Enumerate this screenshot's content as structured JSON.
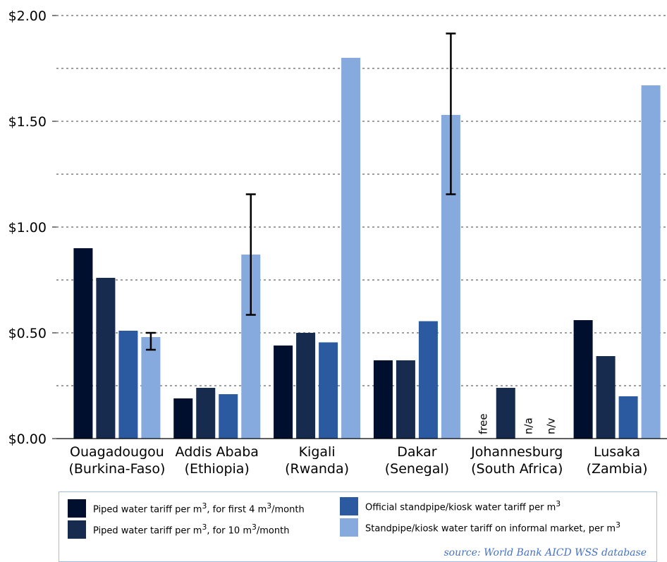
{
  "chart_data": {
    "type": "bar",
    "title": "",
    "xlabel": "",
    "ylabel": "",
    "ylim": [
      0,
      2.0
    ],
    "yticks": [
      0.0,
      0.5,
      1.0,
      1.5,
      2.0
    ],
    "ytick_labels": [
      "$0.00",
      "$0.50",
      "$1.00",
      "$1.50",
      "$2.00"
    ],
    "minor_gridlines": [
      0.25,
      0.75,
      1.25,
      1.75
    ],
    "grid": "horizontal dotted",
    "categories": [
      {
        "line1": "Ouagadougou",
        "line2": "(Burkina-Faso)"
      },
      {
        "line1": "Addis Ababa",
        "line2": "(Ethiopia)"
      },
      {
        "line1": "Kigali",
        "line2": "(Rwanda)"
      },
      {
        "line1": "Dakar",
        "line2": "(Senegal)"
      },
      {
        "line1": "Johannesburg",
        "line2": "(South Africa)"
      },
      {
        "line1": "Lusaka",
        "line2": "(Zambia)"
      }
    ],
    "series": [
      {
        "name": "Piped water tariff per m3, for first 4 m3/month",
        "color": "#000f2d",
        "values": [
          0.9,
          0.19,
          0.44,
          0.37,
          null,
          0.56
        ]
      },
      {
        "name": "Piped water tariff per m3, for 10 m3/month",
        "color": "#172b4e",
        "values": [
          0.76,
          0.24,
          0.5,
          0.37,
          0.24,
          0.39
        ]
      },
      {
        "name": "Official standpipe/kiosk water tariff per m3",
        "color": "#2c5aa0",
        "values": [
          0.51,
          0.21,
          0.455,
          0.555,
          null,
          0.2
        ]
      },
      {
        "name": "Standpipe/kiosk water tariff on informal market, per m3",
        "color": "#87aade",
        "values": [
          0.48,
          0.87,
          1.8,
          1.53,
          null,
          1.67
        ]
      }
    ],
    "error_bars": [
      {
        "category": 0,
        "series": 3,
        "low": 0.42,
        "high": 0.5
      },
      {
        "category": 1,
        "series": 3,
        "low": 0.585,
        "high": 1.155
      },
      {
        "category": 3,
        "series": 3,
        "low": 1.155,
        "high": 1.915
      }
    ],
    "annotations": [
      {
        "category": 4,
        "series": 0,
        "text": "free"
      },
      {
        "category": 4,
        "series": 2,
        "text": "n/a"
      },
      {
        "category": 4,
        "series": 3,
        "text": "n/v"
      }
    ],
    "legend": {
      "placement": "bottom",
      "items": [
        {
          "pre": "Piped water tariff per m",
          "sup": "3",
          "post": ", for first 4 m",
          "sup2": "3",
          "post2": "/month",
          "color": "#000f2d"
        },
        {
          "pre": "Piped water tariff per m",
          "sup": "3",
          "post": ", for 10 m",
          "sup2": "3",
          "post2": "/month",
          "color": "#172b4e"
        },
        {
          "pre": "Official standpipe/kiosk water tariff per m",
          "sup": "3",
          "post": "",
          "sup2": "",
          "post2": "",
          "color": "#2c5aa0"
        },
        {
          "pre": "Standpipe/kiosk water tariff on informal market, per m",
          "sup": "3",
          "post": "",
          "sup2": "",
          "post2": "",
          "color": "#87aade"
        }
      ]
    },
    "source": "source: World Bank AICD WSS database"
  }
}
